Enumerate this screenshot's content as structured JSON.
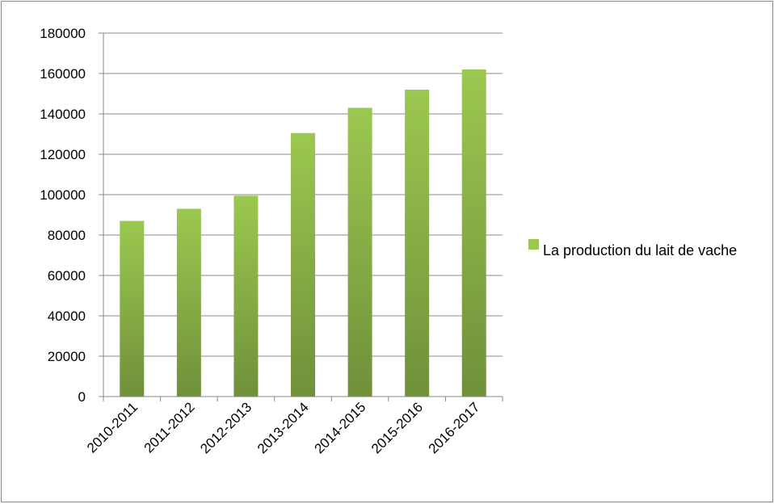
{
  "chart_data": {
    "type": "bar",
    "categories": [
      "2010-2011",
      "2011-2012",
      "2012-2013",
      "2013-2014",
      "2014-2015",
      "2015-2016",
      "2016-2017"
    ],
    "series": [
      {
        "name": "La production du lait de vache",
        "color": "#9bc850",
        "values": [
          87000,
          93000,
          99500,
          130500,
          143000,
          152000,
          162000
        ]
      }
    ],
    "ylim": [
      0,
      180000
    ],
    "yticks": [
      0,
      20000,
      40000,
      60000,
      80000,
      100000,
      120000,
      140000,
      160000,
      180000
    ],
    "grid": true,
    "legend": "right"
  }
}
